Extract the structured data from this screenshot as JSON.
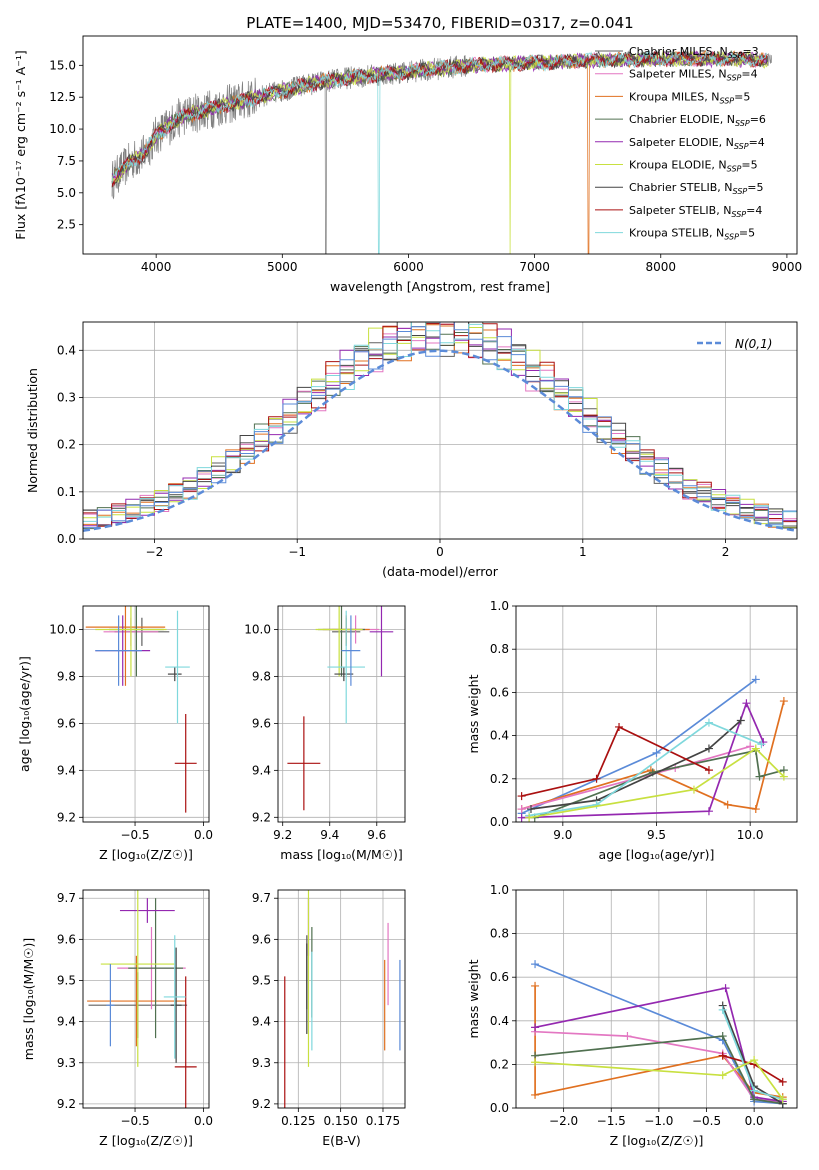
{
  "colors": {
    "Chabrier MILES": "#606060",
    "Salpeter MILES": "#e377c2",
    "Kroupa MILES": "#e07020",
    "Chabrier ELODIE": "#507050",
    "Salpeter ELODIE": "#9428b0",
    "Kroupa ELODIE": "#c8e040",
    "Chabrier STELIB": "#444444",
    "Salpeter STELIB": "#aa1010",
    "Kroupa STELIB": "#7fd8dc",
    "normal": "#5b8bd8"
  },
  "chart_data": [
    {
      "id": "spectrum",
      "type": "line",
      "title": "PLATE=1400, MJD=53470, FIBERID=0317, z=0.041",
      "xlabel": "wavelength [Angstrom, rest frame]",
      "ylabel": "Flux [fλ10⁻¹⁷ erg cm⁻² s⁻¹ A⁻¹]",
      "xlim": [
        3420,
        9080
      ],
      "ylim": [
        0.2,
        17.3
      ],
      "xticks": [
        "4000",
        "5000",
        "6000",
        "7000",
        "8000",
        "9000"
      ],
      "yticks": [
        "2.5",
        "5.0",
        "7.5",
        "10.0",
        "12.5",
        "15.0"
      ],
      "legend_position": "top-right",
      "data_continuum": {
        "x": [
          3650,
          3800,
          3900,
          4000,
          4200,
          4400,
          4600,
          4800,
          5000,
          5200,
          5500,
          6000,
          6500,
          7000,
          7500,
          8000,
          8500,
          9000
        ],
        "y": [
          6.0,
          7.5,
          8.0,
          9.5,
          11.0,
          11.5,
          12.0,
          12.5,
          13.0,
          13.5,
          14.0,
          14.5,
          15.0,
          15.2,
          15.4,
          15.5,
          15.5,
          15.4
        ]
      },
      "legend": [
        {
          "label": "Chabrier MILES, N_SSP=3"
        },
        {
          "label": "Salpeter MILES, N_SSP=4"
        },
        {
          "label": "Kroupa MILES, N_SSP=5"
        },
        {
          "label": "Chabrier ELODIE, N_SSP=6"
        },
        {
          "label": "Salpeter ELODIE, N_SSP=4"
        },
        {
          "label": "Kroupa ELODIE, N_SSP=5"
        },
        {
          "label": "Chabrier STELIB, N_SSP=5"
        },
        {
          "label": "Salpeter STELIB, N_SSP=4"
        },
        {
          "label": "Kroupa STELIB, N_SSP=5"
        }
      ],
      "legend_display": [
        {
          "main": "Chabrier MILES, N",
          "sub": "SSP",
          "tail": "=3"
        },
        {
          "main": "Salpeter MILES, N",
          "sub": "SSP",
          "tail": "=4"
        },
        {
          "main": "Kroupa MILES, N",
          "sub": "SSP",
          "tail": "=5"
        },
        {
          "main": "Chabrier ELODIE, N",
          "sub": "SSP",
          "tail": "=6"
        },
        {
          "main": "Salpeter ELODIE, N",
          "sub": "SSP",
          "tail": "=4"
        },
        {
          "main": "Kroupa ELODIE, N",
          "sub": "SSP",
          "tail": "=5"
        },
        {
          "main": "Chabrier STELIB, N",
          "sub": "SSP",
          "tail": "=5"
        },
        {
          "main": "Salpeter STELIB, N",
          "sub": "SSP",
          "tail": "=4"
        },
        {
          "main": "Kroupa STELIB, N",
          "sub": "SSP",
          "tail": "=5"
        }
      ]
    },
    {
      "id": "histogram",
      "type": "line",
      "xlabel": "(data-model)/error",
      "ylabel": "Normed distribution",
      "xlim": [
        -2.5,
        2.5
      ],
      "ylim": [
        0.0,
        0.46
      ],
      "xticks": [
        "−2",
        "−1",
        "0",
        "1",
        "2"
      ],
      "yticks": [
        "0.0",
        "0.1",
        "0.2",
        "0.3",
        "0.4"
      ],
      "grid": true,
      "legend_position": "top-right",
      "legend": [
        {
          "label": "N(0,1)"
        }
      ],
      "bin_edges": [
        -2.5,
        -2.4,
        -2.3,
        -2.2,
        -2.1,
        -2.0,
        -1.9,
        -1.8,
        -1.7,
        -1.6,
        -1.5,
        -1.4,
        -1.3,
        -1.2,
        -1.1,
        -1.0,
        -0.9,
        -0.8,
        -0.7,
        -0.6,
        -0.5,
        -0.4,
        -0.3,
        -0.2,
        -0.1,
        0.0,
        0.1,
        0.2,
        0.3,
        0.4,
        0.5,
        0.6,
        0.7,
        0.8,
        0.9,
        1.0,
        1.1,
        1.2,
        1.3,
        1.4,
        1.5,
        1.6,
        1.7,
        1.8,
        1.9,
        2.0,
        2.1,
        2.2,
        2.3,
        2.4,
        2.5
      ],
      "normal_curve": {
        "mean": 0,
        "sigma": 1
      }
    },
    {
      "id": "age_vs_Z",
      "type": "scatter",
      "xlabel": "Z [log₁₀(Z/Z☉)]",
      "ylabel": "age  [log₁₀(age/yr)]",
      "xlim": [
        -0.88,
        0.04
      ],
      "ylim": [
        9.18,
        10.1
      ],
      "xticks": [
        "−0.5",
        "0.0"
      ],
      "yticks": [
        "9.2",
        "9.4",
        "9.6",
        "9.8",
        "10.0"
      ],
      "grid": true,
      "points": [
        {
          "series": "Chabrier MILES",
          "x": -0.45,
          "y": 9.99,
          "xerr": 0.2,
          "yerr": 0.06
        },
        {
          "series": "Salpeter MILES",
          "x": -0.53,
          "y": 9.99,
          "xerr": 0.2,
          "yerr": 0.06
        },
        {
          "series": "Kroupa MILES",
          "x": -0.57,
          "y": 10.01,
          "xerr": 0.29,
          "yerr": 0.25
        },
        {
          "series": "Chabrier ELODIE",
          "x": -0.49,
          "y": 10.0,
          "xerr": 0.2,
          "yerr": 0.2
        },
        {
          "series": "Salpeter ELODIE",
          "x": -0.59,
          "y": 9.91,
          "xerr": 0.2,
          "yerr": 0.15
        },
        {
          "series": "Kroupa ELODIE",
          "x": -0.53,
          "y": 10.0,
          "xerr": 0.26,
          "yerr": 0.2
        },
        {
          "series": "Chabrier STELIB",
          "x": -0.21,
          "y": 9.81,
          "xerr": 0.05,
          "yerr": 0.03
        },
        {
          "series": "Salpeter STELIB",
          "x": -0.13,
          "y": 9.43,
          "xerr": 0.08,
          "yerr": 0.21
        },
        {
          "series": "Kroupa STELIB",
          "x": -0.19,
          "y": 9.84,
          "xerr": 0.09,
          "yerr": 0.24
        },
        {
          "series": "normal",
          "x": -0.62,
          "y": 9.91,
          "xerr": 0.17,
          "yerr": 0.15
        }
      ]
    },
    {
      "id": "age_vs_mass",
      "type": "scatter",
      "xlabel": "mass [log₁₀(M/M☉)]",
      "ylabel": "",
      "xlim": [
        9.18,
        9.72
      ],
      "ylim": [
        9.18,
        10.1
      ],
      "xticks": [
        "9.2",
        "9.4",
        "9.6"
      ],
      "yticks": [
        "9.2",
        "9.4",
        "9.6",
        "9.8",
        "10.0"
      ],
      "grid": true,
      "points": [
        {
          "series": "Chabrier MILES",
          "x": 9.47,
          "y": 9.99,
          "xerr": 0.06,
          "yerr": 0.06
        },
        {
          "series": "Salpeter MILES",
          "x": 9.51,
          "y": 10.0,
          "xerr": 0.1,
          "yerr": 0.06
        },
        {
          "series": "Kroupa MILES",
          "x": 9.47,
          "y": 10.0,
          "xerr": 0.1,
          "yerr": 0.06
        },
        {
          "series": "Chabrier ELODIE",
          "x": 9.45,
          "y": 10.0,
          "xerr": 0.1,
          "yerr": 0.2
        },
        {
          "series": "Salpeter ELODIE",
          "x": 9.62,
          "y": 9.99,
          "xerr": 0.05,
          "yerr": 0.19
        },
        {
          "series": "Kroupa ELODIE",
          "x": 9.44,
          "y": 10.0,
          "xerr": 0.1,
          "yerr": 0.2
        },
        {
          "series": "Chabrier STELIB",
          "x": 9.46,
          "y": 9.81,
          "xerr": 0.04,
          "yerr": 0.03
        },
        {
          "series": "Salpeter STELIB",
          "x": 9.29,
          "y": 9.43,
          "xerr": 0.07,
          "yerr": 0.2
        },
        {
          "series": "Kroupa STELIB",
          "x": 9.47,
          "y": 9.84,
          "xerr": 0.08,
          "yerr": 0.24
        },
        {
          "series": "normal",
          "x": 9.49,
          "y": 9.91,
          "xerr": 0.04,
          "yerr": 0.15
        }
      ]
    },
    {
      "id": "weight_vs_age",
      "type": "line",
      "xlabel": "age  [log₁₀(age/yr)]",
      "ylabel": "mass weight",
      "xlim": [
        8.75,
        10.25
      ],
      "ylim": [
        0.0,
        1.0
      ],
      "xticks": [
        "9.0",
        "9.5",
        "10.0"
      ],
      "yticks": [
        "0.0",
        "0.2",
        "0.4",
        "0.6",
        "0.8",
        "1.0"
      ],
      "grid": true,
      "series": [
        {
          "key": "normal",
          "x": [
            8.78,
            9.5,
            10.03
          ],
          "y": [
            0.04,
            0.32,
            0.66
          ]
        },
        {
          "key": "Kroupa MILES",
          "x": [
            8.78,
            9.47,
            9.88,
            10.03,
            10.18
          ],
          "y": [
            0.06,
            0.24,
            0.08,
            0.06,
            0.56
          ]
        },
        {
          "key": "Salpeter MILES",
          "x": [
            8.78,
            9.6,
            10.0
          ],
          "y": [
            0.06,
            0.25,
            0.35
          ]
        },
        {
          "key": "Salpeter ELODIE",
          "x": [
            8.78,
            9.78,
            9.98,
            10.07
          ],
          "y": [
            0.02,
            0.05,
            0.55,
            0.37
          ]
        },
        {
          "key": "Chabrier ELODIE",
          "x": [
            8.85,
            9.48,
            10.03,
            10.05,
            10.18
          ],
          "y": [
            0.02,
            0.23,
            0.33,
            0.21,
            0.24
          ]
        },
        {
          "key": "Chabrier STELIB",
          "x": [
            8.83,
            9.18,
            9.78,
            9.95
          ],
          "y": [
            0.06,
            0.1,
            0.34,
            0.47
          ]
        },
        {
          "key": "Salpeter STELIB",
          "x": [
            8.78,
            9.18,
            9.3,
            9.78
          ],
          "y": [
            0.12,
            0.2,
            0.44,
            0.24
          ]
        },
        {
          "key": "Kroupa STELIB",
          "x": [
            8.82,
            9.18,
            9.78,
            10.06
          ],
          "y": [
            0.03,
            0.08,
            0.46,
            0.36
          ]
        },
        {
          "key": "Kroupa ELODIE",
          "x": [
            8.82,
            9.7,
            10.03,
            10.18
          ],
          "y": [
            0.02,
            0.15,
            0.34,
            0.21
          ]
        }
      ]
    },
    {
      "id": "mass_vs_Z",
      "type": "scatter",
      "xlabel": "Z [log₁₀(Z/Z☉)]",
      "ylabel": "mass [log₁₀(M/M☉)]",
      "xlim": [
        -0.88,
        0.04
      ],
      "ylim": [
        9.19,
        9.72
      ],
      "xticks": [
        "−0.5",
        "0.0"
      ],
      "yticks": [
        "9.2",
        "9.3",
        "9.4",
        "9.5",
        "9.6",
        "9.7"
      ],
      "grid": true,
      "points": [
        {
          "series": "Chabrier MILES",
          "x": -0.48,
          "y": 9.44,
          "xerr": 0.36,
          "yerr": 0.08
        },
        {
          "series": "Salpeter MILES",
          "x": -0.38,
          "y": 9.53,
          "xerr": 0.25,
          "yerr": 0.1
        },
        {
          "series": "Kroupa MILES",
          "x": -0.49,
          "y": 9.45,
          "xerr": 0.36,
          "yerr": 0.11
        },
        {
          "series": "Chabrier ELODIE",
          "x": -0.35,
          "y": 9.53,
          "xerr": 0.2,
          "yerr": 0.17
        },
        {
          "series": "Salpeter ELODIE",
          "x": -0.41,
          "y": 9.67,
          "xerr": 0.2,
          "yerr": 0.03
        },
        {
          "series": "Kroupa ELODIE",
          "x": -0.48,
          "y": 9.54,
          "xerr": 0.27,
          "yerr": 0.25
        },
        {
          "series": "Chabrier STELIB",
          "x": -0.2,
          "y": 9.44,
          "xerr": 0.04,
          "yerr": 0.14
        },
        {
          "series": "Salpeter STELIB",
          "x": -0.13,
          "y": 9.29,
          "xerr": 0.08,
          "yerr": 0.22
        },
        {
          "series": "Kroupa STELIB",
          "x": -0.21,
          "y": 9.46,
          "xerr": 0.08,
          "yerr": 0.15
        },
        {
          "series": "normal",
          "x": -0.68,
          "y": 9.44,
          "xerr": 0.03,
          "yerr": 0.1
        }
      ]
    },
    {
      "id": "mass_vs_EBV",
      "type": "scatter",
      "xlabel": "E(B-V)",
      "ylabel": "",
      "xlim": [
        0.113,
        0.188
      ],
      "ylim": [
        9.19,
        9.72
      ],
      "xticks": [
        "0.125",
        "0.150",
        "0.175"
      ],
      "yticks": [
        "9.2",
        "9.3",
        "9.4",
        "9.5",
        "9.6",
        "9.7"
      ],
      "grid": true,
      "points": [
        {
          "series": "Chabrier MILES",
          "x": 0.13,
          "y": 9.52,
          "yerr": 0.09
        },
        {
          "series": "Salpeter MILES",
          "x": 0.178,
          "y": 9.54,
          "yerr": 0.1
        },
        {
          "series": "Kroupa MILES",
          "x": 0.176,
          "y": 9.44,
          "yerr": 0.11
        },
        {
          "series": "Chabrier ELODIE",
          "x": 0.133,
          "y": 9.52,
          "yerr": 0.11
        },
        {
          "series": "Salpeter ELODIE",
          "x": 0.131,
          "y": 9.63,
          "yerr": 0.07
        },
        {
          "series": "Kroupa ELODIE",
          "x": 0.131,
          "y": 9.54,
          "yerr": 0.25
        },
        {
          "series": "Chabrier STELIB",
          "x": 0.13,
          "y": 9.48,
          "yerr": 0.11
        },
        {
          "series": "Salpeter STELIB",
          "x": 0.117,
          "y": 9.35,
          "yerr": 0.16
        },
        {
          "series": "Kroupa STELIB",
          "x": 0.133,
          "y": 9.45,
          "yerr": 0.12
        },
        {
          "series": "normal",
          "x": 0.185,
          "y": 9.44,
          "yerr": 0.11
        }
      ]
    },
    {
      "id": "weight_vs_Z",
      "type": "line",
      "xlabel": "Z [log₁₀(Z/Z☉)]",
      "ylabel": "mass weight",
      "xlim": [
        -2.5,
        0.45
      ],
      "ylim": [
        0.0,
        1.0
      ],
      "xticks": [
        "−2.0",
        "−1.5",
        "−1.0",
        "−0.5",
        "0.0"
      ],
      "yticks": [
        "0.0",
        "0.2",
        "0.4",
        "0.6",
        "0.8",
        "1.0"
      ],
      "grid": true,
      "series": [
        {
          "key": "normal",
          "x": [
            -2.3,
            -0.33,
            0.0,
            0.3
          ],
          "y": [
            0.66,
            0.31,
            0.03,
            0.02
          ]
        },
        {
          "key": "Kroupa MILES",
          "x": [
            -2.3,
            -2.3,
            -0.33,
            0.0,
            0.3
          ],
          "y": [
            0.56,
            0.06,
            0.24,
            0.07,
            0.05
          ]
        },
        {
          "key": "Salpeter MILES",
          "x": [
            -2.3,
            -1.33,
            -0.33,
            0.0,
            0.3
          ],
          "y": [
            0.35,
            0.33,
            0.25,
            0.04,
            0.03
          ]
        },
        {
          "key": "Salpeter ELODIE",
          "x": [
            -2.3,
            -0.3,
            0.0,
            0.3
          ],
          "y": [
            0.37,
            0.55,
            0.05,
            0.03
          ]
        },
        {
          "key": "Chabrier ELODIE",
          "x": [
            -2.3,
            -0.33,
            0.0,
            0.3
          ],
          "y": [
            0.24,
            0.33,
            0.04,
            0.02
          ]
        },
        {
          "key": "Chabrier STELIB",
          "x": [
            -0.33,
            0.0,
            0.3
          ],
          "y": [
            0.47,
            0.1,
            0.02
          ]
        },
        {
          "key": "Salpeter STELIB",
          "x": [
            -0.33,
            0.0,
            0.3
          ],
          "y": [
            0.24,
            0.2,
            0.12
          ]
        },
        {
          "key": "Kroupa STELIB",
          "x": [
            -0.33,
            0.0,
            0.3
          ],
          "y": [
            0.45,
            0.08,
            0.04
          ]
        },
        {
          "key": "Kroupa ELODIE",
          "x": [
            -2.3,
            -0.33,
            0.0,
            0.3
          ],
          "y": [
            0.21,
            0.15,
            0.22,
            0.04
          ]
        }
      ]
    }
  ]
}
